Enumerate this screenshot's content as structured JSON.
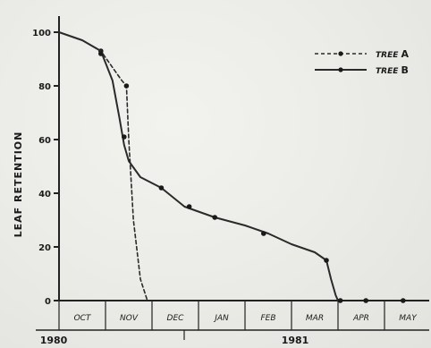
{
  "chart_data": {
    "type": "line",
    "ylabel_parts": [
      "LEAF",
      "RETENTION"
    ],
    "ylim": [
      0,
      100
    ],
    "yticks": [
      0,
      20,
      40,
      60,
      80,
      100
    ],
    "ytick_labels": [
      "0",
      "20",
      "40",
      "60",
      "80",
      "100"
    ],
    "months": [
      "OCT",
      "NOV",
      "DEC",
      "JAN",
      "FEB",
      "MAR",
      "APR",
      "MAY"
    ],
    "years": [
      "1980",
      "1981"
    ],
    "grid": false,
    "legend_position": "top-right",
    "series": [
      {
        "name": "TREE A",
        "name_prefix": "TREE",
        "name_letter": "A",
        "style": "dashed",
        "x": [
          0.0,
          0.5,
          0.9,
          1.35,
          1.45,
          1.5,
          1.6,
          1.75,
          1.9
        ],
        "y": [
          100,
          97,
          93,
          82,
          80,
          60,
          30,
          8,
          0
        ],
        "markers": [
          [
            0.9,
            93
          ],
          [
            1.45,
            80
          ]
        ]
      },
      {
        "name": "TREE B",
        "name_prefix": "TREE",
        "name_letter": "B",
        "style": "solid",
        "x": [
          0.0,
          0.5,
          0.9,
          1.15,
          1.3,
          1.4,
          1.5,
          1.75,
          2.2,
          2.7,
          3.35,
          4.0,
          4.5,
          5.0,
          5.5,
          5.75,
          5.85,
          5.95,
          6.0
        ],
        "y": [
          100,
          97,
          93,
          82,
          68,
          58,
          52,
          46,
          42,
          35,
          31,
          28,
          25,
          21,
          18,
          15,
          8,
          2,
          0
        ],
        "markers": [
          [
            0.9,
            92
          ],
          [
            1.4,
            61
          ],
          [
            2.2,
            42
          ],
          [
            2.8,
            35
          ],
          [
            3.35,
            31
          ],
          [
            4.4,
            25
          ],
          [
            5.75,
            15
          ],
          [
            6.05,
            0
          ],
          [
            6.6,
            0
          ],
          [
            7.4,
            0
          ]
        ]
      }
    ]
  }
}
